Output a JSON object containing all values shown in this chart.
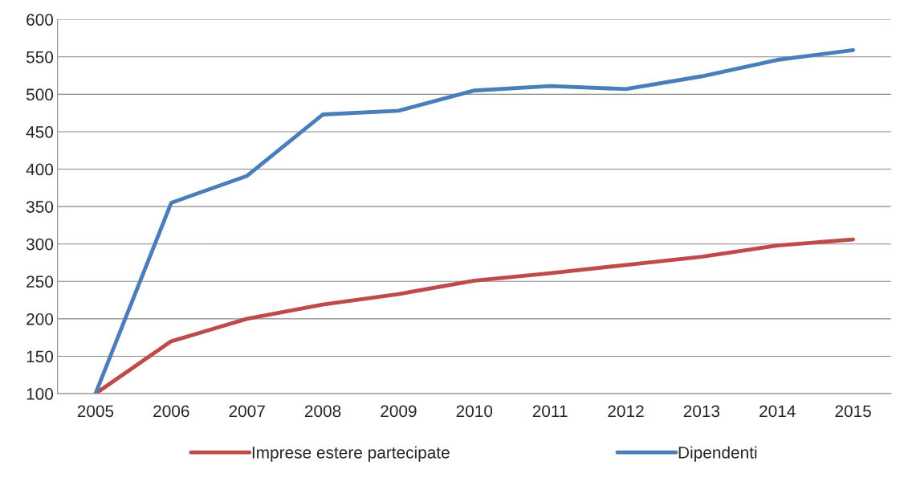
{
  "chart_data": {
    "type": "line",
    "categories": [
      "2005",
      "2006",
      "2007",
      "2008",
      "2009",
      "2010",
      "2011",
      "2012",
      "2013",
      "2014",
      "2015"
    ],
    "series": [
      {
        "name": "Imprese estere partecipate",
        "color": "#be4b48",
        "values": [
          100,
          170,
          200,
          219,
          233,
          251,
          261,
          272,
          283,
          298,
          306
        ]
      },
      {
        "name": "Dipendenti",
        "color": "#4a7ebb",
        "values": [
          100,
          355,
          391,
          473,
          478,
          505,
          511,
          507,
          524,
          546,
          559
        ]
      }
    ],
    "ylim": [
      100,
      600
    ],
    "yticks": [
      100,
      150,
      200,
      250,
      300,
      350,
      400,
      450,
      500,
      550,
      600
    ],
    "grid": "y",
    "legend": "bottom",
    "marker": "none",
    "line_style": "solid"
  }
}
